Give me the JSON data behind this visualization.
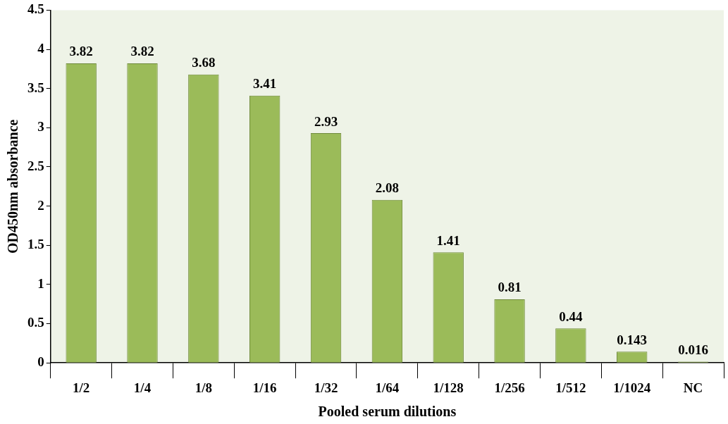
{
  "chart_data": {
    "type": "bar",
    "xlabel": "Pooled serum dilutions",
    "ylabel": "OD450nm absorbance",
    "categories": [
      "1/2",
      "1/4",
      "1/8",
      "1/16",
      "1/32",
      "1/64",
      "1/128",
      "1/256",
      "1/512",
      "1/1024",
      "NC"
    ],
    "values": [
      3.82,
      3.82,
      3.68,
      3.41,
      2.93,
      2.08,
      1.41,
      0.81,
      0.44,
      0.143,
      0.016
    ],
    "color": "#9bbb59",
    "ylim": [
      0,
      4.5
    ],
    "yticks": [
      0,
      0.5,
      1,
      1.5,
      2,
      2.5,
      3,
      3.5,
      4,
      4.5
    ],
    "grid": false,
    "legend": false,
    "data_labels": true
  }
}
